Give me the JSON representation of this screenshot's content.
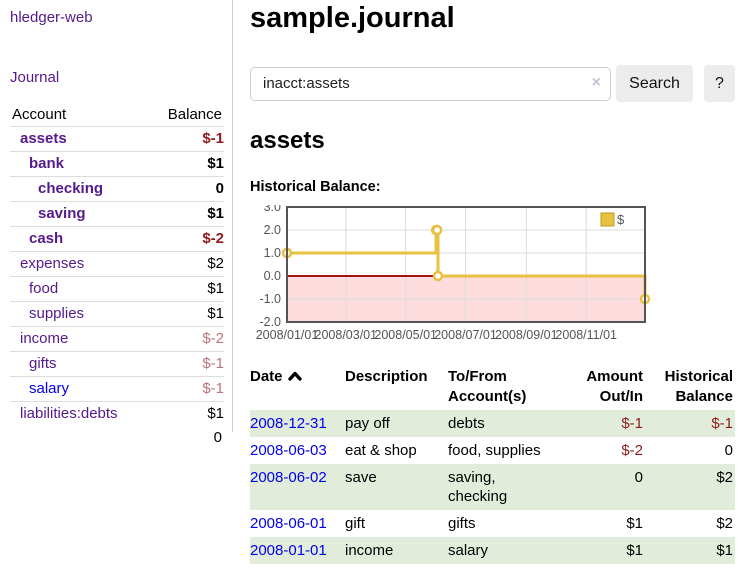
{
  "sidebar": {
    "app_title": "hledger-web",
    "journal_link": "Journal",
    "accounts": {
      "col_account": "Account",
      "col_balance": "Balance",
      "rows": [
        {
          "name": "assets",
          "balance": "$-1",
          "indent": 0,
          "bold": true,
          "neg": "strong",
          "link": "visited"
        },
        {
          "name": "bank",
          "balance": "$1",
          "indent": 1,
          "bold": true,
          "neg": "",
          "link": "visited"
        },
        {
          "name": "checking",
          "balance": "0",
          "indent": 2,
          "bold": true,
          "neg": "",
          "link": "visited"
        },
        {
          "name": "saving",
          "balance": "$1",
          "indent": 2,
          "bold": true,
          "neg": "",
          "link": "visited"
        },
        {
          "name": "cash",
          "balance": "$-2",
          "indent": 1,
          "bold": true,
          "neg": "strong",
          "link": "visited"
        },
        {
          "name": "expenses",
          "balance": "$2",
          "indent": 0,
          "bold": false,
          "neg": "",
          "link": "visited"
        },
        {
          "name": "food",
          "balance": "$1",
          "indent": 1,
          "bold": false,
          "neg": "",
          "link": "visited"
        },
        {
          "name": "supplies",
          "balance": "$1",
          "indent": 1,
          "bold": false,
          "neg": "",
          "link": "visited"
        },
        {
          "name": "income",
          "balance": "$-2",
          "indent": 0,
          "bold": false,
          "neg": "soft",
          "link": "visited"
        },
        {
          "name": "gifts",
          "balance": "$-1",
          "indent": 1,
          "bold": false,
          "neg": "soft",
          "link": "visited"
        },
        {
          "name": "salary",
          "balance": "$-1",
          "indent": 1,
          "bold": false,
          "neg": "soft",
          "link": "unvisited"
        },
        {
          "name": "liabilities:debts",
          "balance": "$1",
          "indent": 0,
          "bold": false,
          "neg": "",
          "link": "visited"
        }
      ],
      "total": "0"
    }
  },
  "main": {
    "title": "sample.journal",
    "search": {
      "value": "inacct:assets",
      "clear_icon": "×",
      "search_label": "Search",
      "help_label": "?"
    },
    "account_heading": "assets",
    "chart_label": "Historical Balance:"
  },
  "chart_data": {
    "type": "line",
    "step": true,
    "title": "Historical Balance",
    "series": [
      {
        "name": "$",
        "points": [
          {
            "date": "2008-01-01",
            "value": 1
          },
          {
            "date": "2008-06-01",
            "value": 2
          },
          {
            "date": "2008-06-02",
            "value": 2
          },
          {
            "date": "2008-06-03",
            "value": 0
          },
          {
            "date": "2008-12-31",
            "value": -1
          }
        ]
      }
    ],
    "xlim": [
      "2008-01-01",
      "2008-12-31"
    ],
    "ylim": [
      -2,
      3
    ],
    "y_ticks": [
      {
        "value": 3,
        "label": "3.0"
      },
      {
        "value": 2,
        "label": "2.0"
      },
      {
        "value": 1,
        "label": "1.0"
      },
      {
        "value": 0,
        "label": "0.0"
      },
      {
        "value": -1,
        "label": "-1.0"
      },
      {
        "value": -2,
        "label": "-2.0"
      }
    ],
    "x_ticks": [
      {
        "date": "2008-01-01",
        "label": "2008/01/01"
      },
      {
        "date": "2008-03-01",
        "label": "2008/03/01"
      },
      {
        "date": "2008-05-01",
        "label": "2008/05/01"
      },
      {
        "date": "2008-07-01",
        "label": "2008/07/01"
      },
      {
        "date": "2008-09-01",
        "label": "2008/09/01"
      },
      {
        "date": "2008-11-01",
        "label": "2008/11/01"
      }
    ],
    "legend": {
      "label": "$",
      "position": "top-right"
    },
    "grid": true,
    "colors": {
      "line": "#e7c13f",
      "marker_fill": "#ffffff",
      "negative_fill": "#fcdcdc",
      "zero_line": "#a11212",
      "grid": "#dcdcdc",
      "border": "#545454",
      "tick_text": "#545454"
    }
  },
  "register": {
    "headers": {
      "date": "Date",
      "sort_icon": "chevron-up",
      "description": "Description",
      "accounts": "To/From\nAccount(s)",
      "amount": "Amount\nOut/In",
      "balance": "Historical\nBalance"
    },
    "rows": [
      {
        "date": "2008-12-31",
        "description": "pay off",
        "accounts": "debts",
        "amount": "$-1",
        "amount_neg": true,
        "balance": "$-1",
        "balance_neg": true
      },
      {
        "date": "2008-06-03",
        "description": "eat & shop",
        "accounts": "food, supplies",
        "amount": "$-2",
        "amount_neg": true,
        "balance": "0",
        "balance_neg": false
      },
      {
        "date": "2008-06-02",
        "description": "save",
        "accounts": "saving,\nchecking",
        "amount": "0",
        "amount_neg": false,
        "balance": "$2",
        "balance_neg": false
      },
      {
        "date": "2008-06-01",
        "description": "gift",
        "accounts": "gifts",
        "amount": "$1",
        "amount_neg": false,
        "balance": "$2",
        "balance_neg": false
      },
      {
        "date": "2008-01-01",
        "description": "income",
        "accounts": "salary",
        "amount": "$1",
        "amount_neg": false,
        "balance": "$1",
        "balance_neg": false
      }
    ],
    "stripe_color": "#e1ecdb"
  },
  "colors": {
    "link_visited": "#551a8b",
    "link_unvisited": "#0000ee",
    "negative_strong": "#941b1b",
    "negative_soft": "#b87575"
  }
}
